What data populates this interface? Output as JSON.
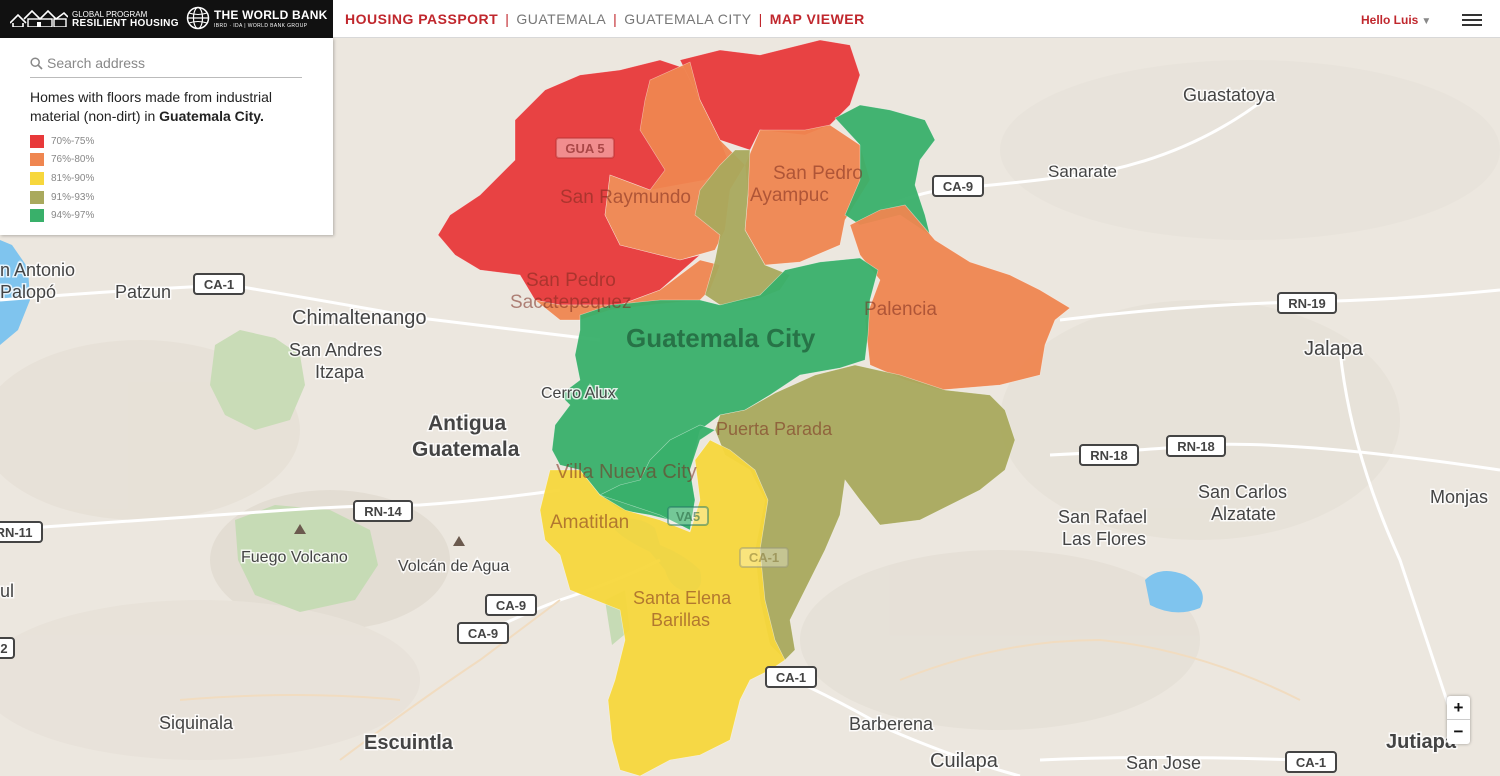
{
  "header": {
    "brand_line1": "GLOBAL PROGRAM",
    "brand_line2": "RESILIENT HOUSING",
    "worldbank_line1": "THE WORLD BANK",
    "worldbank_line2": "IBRD · IDA | WORLD BANK GROUP",
    "breadcrumbs": [
      "HOUSING PASSPORT",
      "GUATEMALA",
      "GUATEMALA CITY",
      "MAP VIEWER"
    ],
    "separator": "|",
    "user_label": "Hello Luis",
    "user_caret": "▼"
  },
  "panel": {
    "search_placeholder": "Search address",
    "legend_title_prefix": "Homes with floors made from industrial material (non-dirt) in",
    "legend_title_city": "Guatemala City.",
    "legend": [
      {
        "label": "70%-75%",
        "color": "#e8393a"
      },
      {
        "label": "76%-80%",
        "color": "#ef8650"
      },
      {
        "label": "81%-90%",
        "color": "#f7d73c"
      },
      {
        "label": "91%-93%",
        "color": "#a9a95d"
      },
      {
        "label": "94%-97%",
        "color": "#39b06a"
      }
    ]
  },
  "map": {
    "places": {
      "guastatoya": "Guastatoya",
      "sanarate": "Sanarate",
      "jalapa": "Jalapa",
      "san_antonio_1": "n Antonio",
      "san_antonio_2": "Palopó",
      "patzun": "Patzun",
      "chimaltenango": "Chimaltenango",
      "san_andres_1": "San Andres",
      "san_andres_2": "Itzapa",
      "antigua_1": "Antigua",
      "antigua_2": "Guatemala",
      "cerro_alux": "Cerro Alux",
      "fuego": "Fuego Volcano",
      "agua": "Volcán de Agua",
      "san_rafael_1": "San Rafael",
      "san_rafael_2": "Las Flores",
      "san_carlos_1": "San Carlos",
      "san_carlos_2": "Alzatate",
      "monjas": "Monjas",
      "siquinala": "Siquinala",
      "escuintla": "Escuintla",
      "barberena": "Barberena",
      "cuilapa": "Cuilapa",
      "san_jose": "San Jose",
      "jutiapa": "Jutiapa",
      "left_edge_1": "ul",
      "san_raymundo": "San Raymundo",
      "san_pedro_ayampuc_1": "San Pedro",
      "san_pedro_ayampuc_2": "Ayampuc",
      "san_pedro_sac_1": "San Pedro",
      "san_pedro_sac_2": "Sacatepequez",
      "palencia": "Palencia",
      "guatemala_city": "Guatemala City",
      "puerta_parada": "Puerta Parada",
      "villa_nueva": "Villa Nueva City",
      "amatitlan": "Amatitlan",
      "santa_elena_1": "Santa Elena",
      "santa_elena_2": "Barillas"
    },
    "roads": {
      "gua5": "GUA 5",
      "ca9_a": "CA-9",
      "ca1_a": "CA-1",
      "rn19": "RN-19",
      "rn18_a": "RN-18",
      "rn18_b": "RN-18",
      "rn14": "RN-14",
      "rn11": "RN-11",
      "va5": "VA5",
      "ca1_b": "CA-1",
      "ca9_b": "CA-9",
      "ca9_c": "CA-9",
      "ca1_c": "CA-1",
      "ca1_d": "CA-1",
      "r2": "2"
    }
  },
  "zoom": {
    "in": "+",
    "out": "−"
  }
}
